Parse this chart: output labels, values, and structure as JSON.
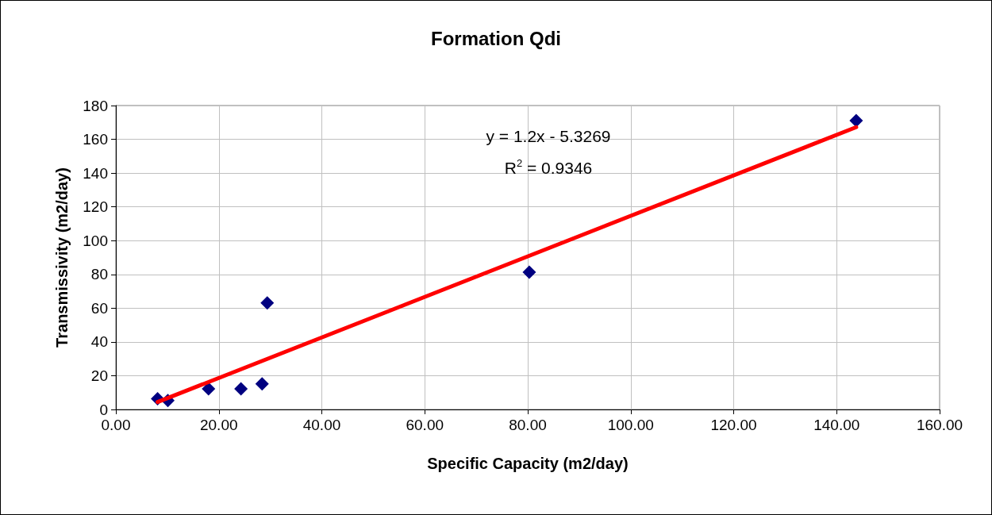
{
  "chart_data": {
    "type": "scatter",
    "title": "Formation Qdi",
    "xlabel": "Specific Capacity (m2/day)",
    "ylabel": "Transmissivity (m2/day)",
    "annotations": [
      "y = 1.2x - 5.3269",
      "R$^{2}$ = 0.9346"
    ],
    "xlim": [
      0,
      160
    ],
    "xticks": [
      {
        "value": 0,
        "label": "0.00"
      },
      {
        "value": 20,
        "label": "20.00"
      },
      {
        "value": 40,
        "label": "40.00"
      },
      {
        "value": 60,
        "label": "60.00"
      },
      {
        "value": 80,
        "label": "80.00"
      },
      {
        "value": 100,
        "label": "100.00"
      },
      {
        "value": 120,
        "label": "120.00"
      },
      {
        "value": 140,
        "label": "140.00"
      },
      {
        "value": 160,
        "label": "160.00"
      }
    ],
    "ylim": [
      0,
      180
    ],
    "yticks": [
      0,
      20,
      40,
      60,
      80,
      100,
      120,
      140,
      160,
      180
    ],
    "grid": true,
    "series": [
      {
        "color": "#000080",
        "marker": "diamond",
        "x": [
          8.1,
          10.1,
          18.0,
          24.3,
          28.4,
          29.4,
          80.3,
          143.8
        ],
        "values": [
          6.4,
          5.3,
          12.2,
          12.2,
          15.1,
          63.1,
          81.3,
          171.1
        ]
      },
      {
        "type": "line",
        "color": "#ff0000",
        "marker": "none",
        "line_style": "solid",
        "x": [
          8.1,
          143.8
        ],
        "values": [
          4.4,
          167.2
        ]
      }
    ]
  }
}
